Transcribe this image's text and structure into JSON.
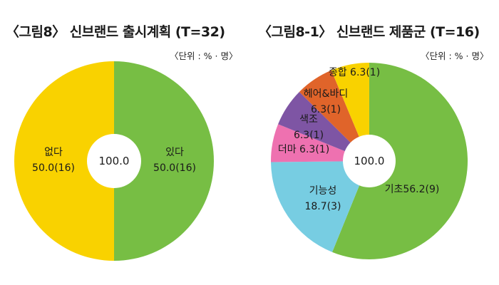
{
  "charts": [
    {
      "title": "〈그림8〉 신브랜드 출시계획 (T=32)",
      "unit_note": "〈단위 : % · 명〉",
      "center_label": "100.0",
      "chart_data": {
        "type": "pie",
        "style": "donut",
        "start": "top",
        "direction": "clockwise",
        "slices": [
          {
            "label": "있다",
            "value_text": "50.0(16)",
            "percent": 50.0,
            "count": 16,
            "color": "#77BE44"
          },
          {
            "label": "없다",
            "value_text": "50.0(16)",
            "percent": 50.0,
            "count": 16,
            "color": "#F9D200"
          }
        ]
      }
    },
    {
      "title": "〈그림8-1〉 신브랜드 제품군 (T=16)",
      "unit_note": "〈단위 : % · 명〉",
      "center_label": "100.0",
      "chart_data": {
        "type": "pie",
        "style": "donut",
        "start": "top",
        "direction": "clockwise",
        "slices": [
          {
            "label": "기초",
            "value_text": "56.2(9)",
            "percent": 56.2,
            "count": 9,
            "color": "#77BE44"
          },
          {
            "label": "기능성",
            "value_text": "18.7(3)",
            "percent": 18.7,
            "count": 3,
            "color": "#77CDE2"
          },
          {
            "label": "더마",
            "value_text": "6.3(1)",
            "percent": 6.3,
            "count": 1,
            "color": "#EE71B0"
          },
          {
            "label": "색조",
            "value_text": "6.3(1)",
            "percent": 6.3,
            "count": 1,
            "color": "#7E55A4"
          },
          {
            "label": "헤어&바디",
            "value_text": "6.3(1)",
            "percent": 6.3,
            "count": 1,
            "color": "#E0642A"
          },
          {
            "label": "종합",
            "value_text": "6.3(1)",
            "percent": 6.3,
            "count": 1,
            "color": "#F9D200"
          }
        ]
      }
    }
  ]
}
